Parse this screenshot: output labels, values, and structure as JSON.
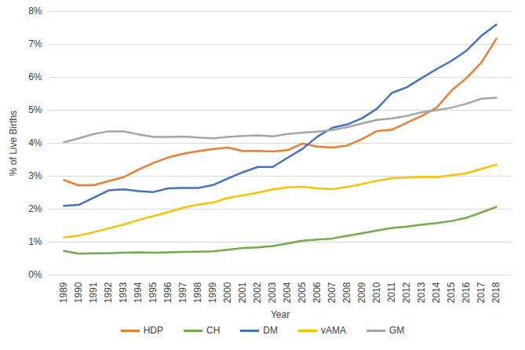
{
  "chart_data": {
    "type": "line",
    "x_label": "Year",
    "y_label": "% of Live Births",
    "x": [
      "1989",
      "1990",
      "1991",
      "1992",
      "1993",
      "1994",
      "1995",
      "1996",
      "1997",
      "1998",
      "1999",
      "2000",
      "2001",
      "2002",
      "2003",
      "2004",
      "2005",
      "2006",
      "2007",
      "2008",
      "2009",
      "2010",
      "2011",
      "2012",
      "2013",
      "2014",
      "2015",
      "2016",
      "2017",
      "2018"
    ],
    "series": [
      {
        "name": "HDP",
        "color": "#ed7d31",
        "values": [
          2.88,
          2.72,
          2.73,
          2.85,
          2.97,
          3.2,
          3.4,
          3.57,
          3.68,
          3.76,
          3.82,
          3.87,
          3.76,
          3.77,
          3.75,
          3.79,
          3.99,
          3.9,
          3.87,
          3.93,
          4.13,
          4.37,
          4.41,
          4.62,
          4.83,
          5.08,
          5.6,
          5.98,
          6.45,
          7.17
        ]
      },
      {
        "name": "CH",
        "color": "#70ad47",
        "values": [
          0.73,
          0.65,
          0.66,
          0.66,
          0.68,
          0.69,
          0.68,
          0.69,
          0.7,
          0.71,
          0.72,
          0.77,
          0.82,
          0.84,
          0.88,
          0.96,
          1.04,
          1.08,
          1.11,
          1.19,
          1.27,
          1.35,
          1.43,
          1.47,
          1.53,
          1.58,
          1.64,
          1.74,
          1.9,
          2.07
        ]
      },
      {
        "name": "DM",
        "color": "#4472c4",
        "values": [
          2.1,
          2.13,
          2.35,
          2.57,
          2.6,
          2.55,
          2.52,
          2.63,
          2.64,
          2.64,
          2.73,
          2.93,
          3.12,
          3.28,
          3.28,
          3.56,
          3.83,
          4.2,
          4.47,
          4.57,
          4.76,
          5.05,
          5.53,
          5.7,
          5.98,
          6.25,
          6.5,
          6.81,
          7.26,
          7.6
        ]
      },
      {
        "name": "vAMA",
        "color": "#ffc000",
        "values": [
          1.14,
          1.2,
          1.3,
          1.42,
          1.53,
          1.67,
          1.79,
          1.91,
          2.04,
          2.14,
          2.2,
          2.34,
          2.42,
          2.5,
          2.6,
          2.66,
          2.68,
          2.63,
          2.61,
          2.67,
          2.76,
          2.86,
          2.94,
          2.96,
          2.98,
          2.97,
          3.03,
          3.09,
          3.22,
          3.35
        ]
      },
      {
        "name": "GM",
        "color": "#a5a5a5",
        "values": [
          4.03,
          4.15,
          4.28,
          4.36,
          4.36,
          4.27,
          4.19,
          4.19,
          4.2,
          4.17,
          4.15,
          4.19,
          4.22,
          4.24,
          4.21,
          4.28,
          4.32,
          4.35,
          4.4,
          4.49,
          4.6,
          4.71,
          4.75,
          4.83,
          4.94,
          5.0,
          5.08,
          5.2,
          5.35,
          5.38
        ]
      }
    ],
    "ylim": [
      0,
      8
    ],
    "yticks": [
      {
        "value": 0,
        "label": "0%"
      },
      {
        "value": 1,
        "label": "1%"
      },
      {
        "value": 2,
        "label": "2%"
      },
      {
        "value": 3,
        "label": "3%"
      },
      {
        "value": 4,
        "label": "4%"
      },
      {
        "value": 5,
        "label": "5%"
      },
      {
        "value": 6,
        "label": "6%"
      },
      {
        "value": 7,
        "label": "7%"
      },
      {
        "value": 8,
        "label": "8%"
      }
    ],
    "grid": true,
    "legend": "bottom"
  }
}
